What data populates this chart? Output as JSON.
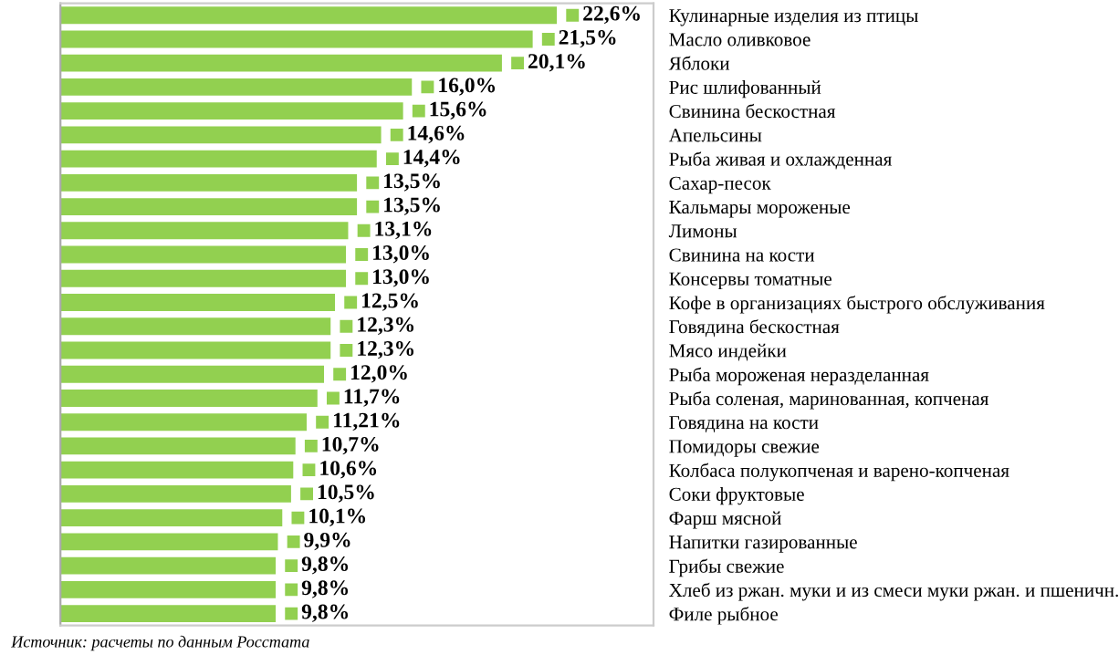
{
  "chart_data": {
    "type": "bar",
    "orientation": "horizontal",
    "categories": [
      "Кулинарные изделия из птицы",
      "Масло оливковое",
      "Яблоки",
      "Рис шлифованный",
      "Свинина бескостная",
      "Апельсины",
      "Рыба живая и охлажденная",
      "Сахар-песок",
      "Кальмары мороженые",
      "Лимоны",
      "Свинина на кости",
      "Консервы томатные",
      "Кофе в организациях быстрого обслуживания",
      "Говядина бескостная",
      "Мясо индейки",
      "Рыба мороженая неразделанная",
      "Рыба соленая, маринованная, копченая",
      "Говядина на кости",
      "Помидоры свежие",
      "Колбаса полукопченая и варено-копченая",
      "Соки фруктовые",
      "Фарш мясной",
      "Напитки газированные",
      "Грибы свежие",
      "Хлеб из ржан. муки и из смеси муки ржан. и пшеничн.",
      "Филе рыбное"
    ],
    "series": [
      {
        "color": "#92d050",
        "values": [
          22.6,
          21.5,
          20.1,
          16.0,
          15.6,
          14.6,
          14.4,
          13.5,
          13.5,
          13.1,
          13.0,
          13.0,
          12.5,
          12.3,
          12.3,
          12.0,
          11.7,
          11.21,
          10.7,
          10.6,
          10.5,
          10.1,
          9.9,
          9.8,
          9.8,
          9.8
        ],
        "value_labels": [
          "22,6%",
          "21,5%",
          "20,1%",
          "16,0%",
          "15,6%",
          "14,6%",
          "14,4%",
          "13,5%",
          "13,5%",
          "13,1%",
          "13,0%",
          "13,0%",
          "12,5%",
          "12,3%",
          "12,3%",
          "12,0%",
          "11,7%",
          "11,21%",
          "10,7%",
          "10,6%",
          "10,5%",
          "10,1%",
          "9,9%",
          "9,8%",
          "9,8%",
          "9,8%"
        ]
      }
    ],
    "xlim": [
      0,
      27
    ],
    "tick_labels": "y",
    "legend": false,
    "grid": false,
    "annotations": [
      "Источник: расчеты по данным Росстата"
    ]
  }
}
